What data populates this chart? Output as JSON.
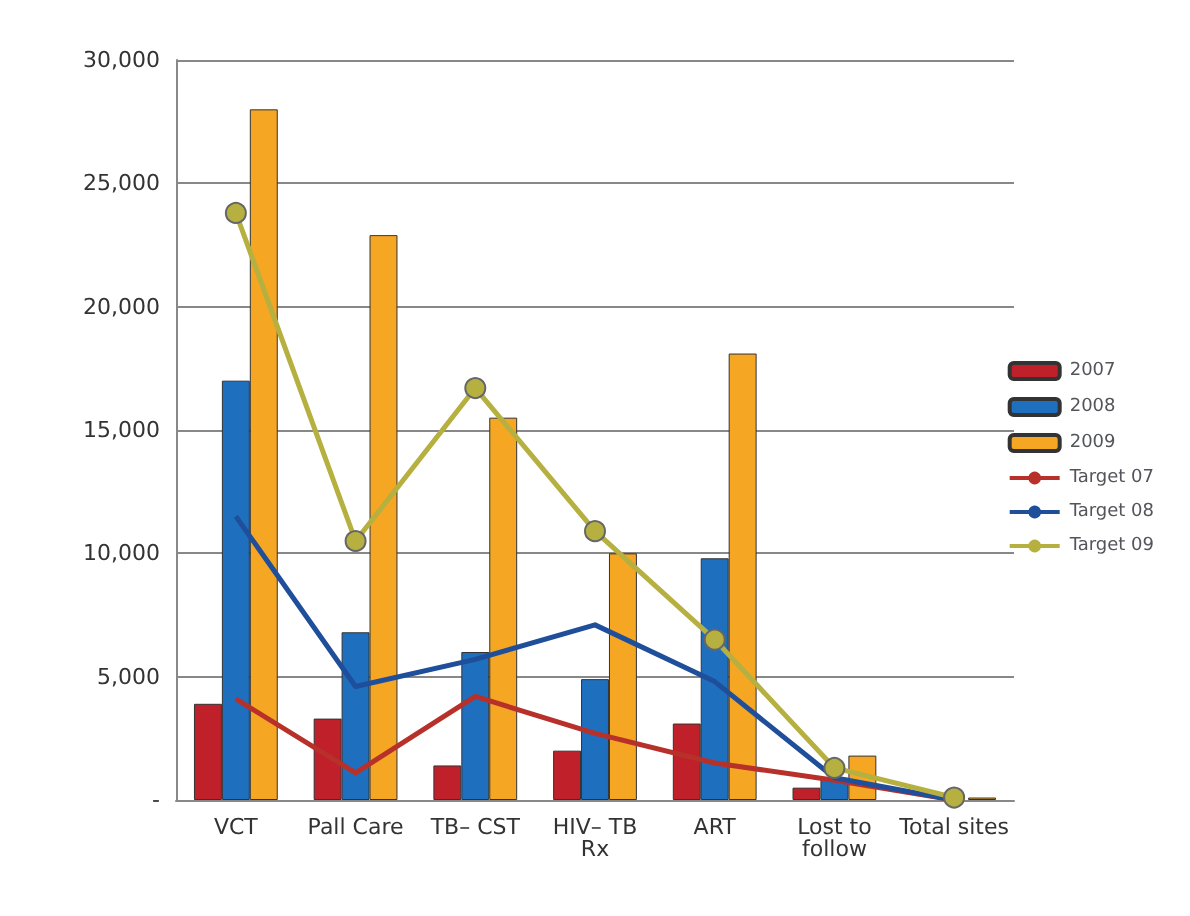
{
  "chart_data": {
    "type": "bar",
    "categories": [
      "VCT",
      "Pall Care",
      "TB– CST",
      "HIV– TB\nRx",
      "ART",
      "Lost to\nfollow",
      "Total sites"
    ],
    "ylim": [
      0,
      30000
    ],
    "yticks": [
      {
        "value": 0,
        "label": "-"
      },
      {
        "value": 5000,
        "label": "5,000"
      },
      {
        "value": 10000,
        "label": "10,000"
      },
      {
        "value": 15000,
        "label": "15,000"
      },
      {
        "value": 20000,
        "label": "20,000"
      },
      {
        "value": 25000,
        "label": "25,000"
      },
      {
        "value": 30000,
        "label": "30,000"
      }
    ],
    "grid": "y",
    "legend": "right",
    "series": [
      {
        "name": "2007",
        "color": "#c0202a",
        "values": [
          3900,
          3300,
          1400,
          2000,
          3100,
          500,
          null
        ]
      },
      {
        "name": "2008",
        "color": "#1f6fbf",
        "values": [
          17000,
          6800,
          6000,
          4900,
          9800,
          900,
          null
        ]
      },
      {
        "name": "2009",
        "color": "#f5a623",
        "values": [
          28000,
          22900,
          15500,
          10000,
          18100,
          1800,
          100
        ]
      },
      {
        "name": "Target 07",
        "type": "line",
        "color": "#b8302a",
        "marker": "none",
        "values": [
          4100,
          1100,
          4200,
          2700,
          1500,
          800,
          0
        ]
      },
      {
        "name": "Target 08",
        "type": "line",
        "color": "#1f4e9a",
        "marker": "none",
        "values": [
          11500,
          4600,
          5700,
          7100,
          4800,
          900,
          0
        ]
      },
      {
        "name": "Target 09",
        "type": "line",
        "color": "#b5b040",
        "marker": "circle",
        "values": [
          23800,
          10500,
          16700,
          10900,
          6500,
          1300,
          100
        ]
      }
    ]
  }
}
